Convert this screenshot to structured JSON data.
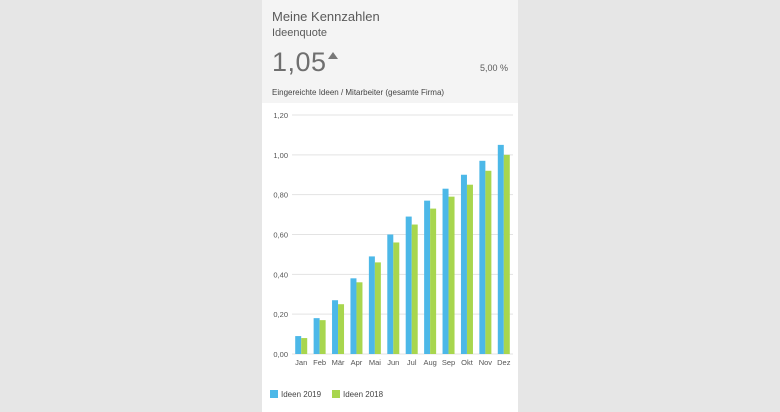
{
  "card": {
    "title": "Meine Kennzahlen",
    "subtitle": "Ideenquote",
    "kpi_value": "1,05",
    "kpi_trend": "up",
    "change_percent": "5,00 %",
    "description": "Eingereichte Ideen / Mitarbeiter (gesamte Firma)"
  },
  "colors": {
    "series_2019": "#4cb8e8",
    "series_2018": "#a8d64e",
    "grid": "#e3e3e3",
    "axis_text": "#555555"
  },
  "chart_data": {
    "type": "bar",
    "title": "",
    "xlabel": "",
    "ylabel": "",
    "ylim": [
      0,
      1.2
    ],
    "yticks": [
      {
        "value": 0.0,
        "label": "0,00"
      },
      {
        "value": 0.2,
        "label": "0,20"
      },
      {
        "value": 0.4,
        "label": "0,40"
      },
      {
        "value": 0.6,
        "label": "0,60"
      },
      {
        "value": 0.8,
        "label": "0,80"
      },
      {
        "value": 1.0,
        "label": "1,00"
      },
      {
        "value": 1.2,
        "label": "1,20"
      }
    ],
    "categories": [
      "Jan",
      "Feb",
      "Mär",
      "Apr",
      "Mai",
      "Jun",
      "Jul",
      "Aug",
      "Sep",
      "Okt",
      "Nov",
      "Dez"
    ],
    "series": [
      {
        "name": "Ideen 2019",
        "values": [
          0.09,
          0.18,
          0.27,
          0.38,
          0.49,
          0.6,
          0.69,
          0.77,
          0.83,
          0.9,
          0.97,
          1.05
        ]
      },
      {
        "name": "Ideen 2018",
        "values": [
          0.08,
          0.17,
          0.25,
          0.36,
          0.46,
          0.56,
          0.65,
          0.73,
          0.79,
          0.85,
          0.92,
          1.0
        ]
      }
    ],
    "grid": true,
    "legend_position": "bottom-left"
  }
}
